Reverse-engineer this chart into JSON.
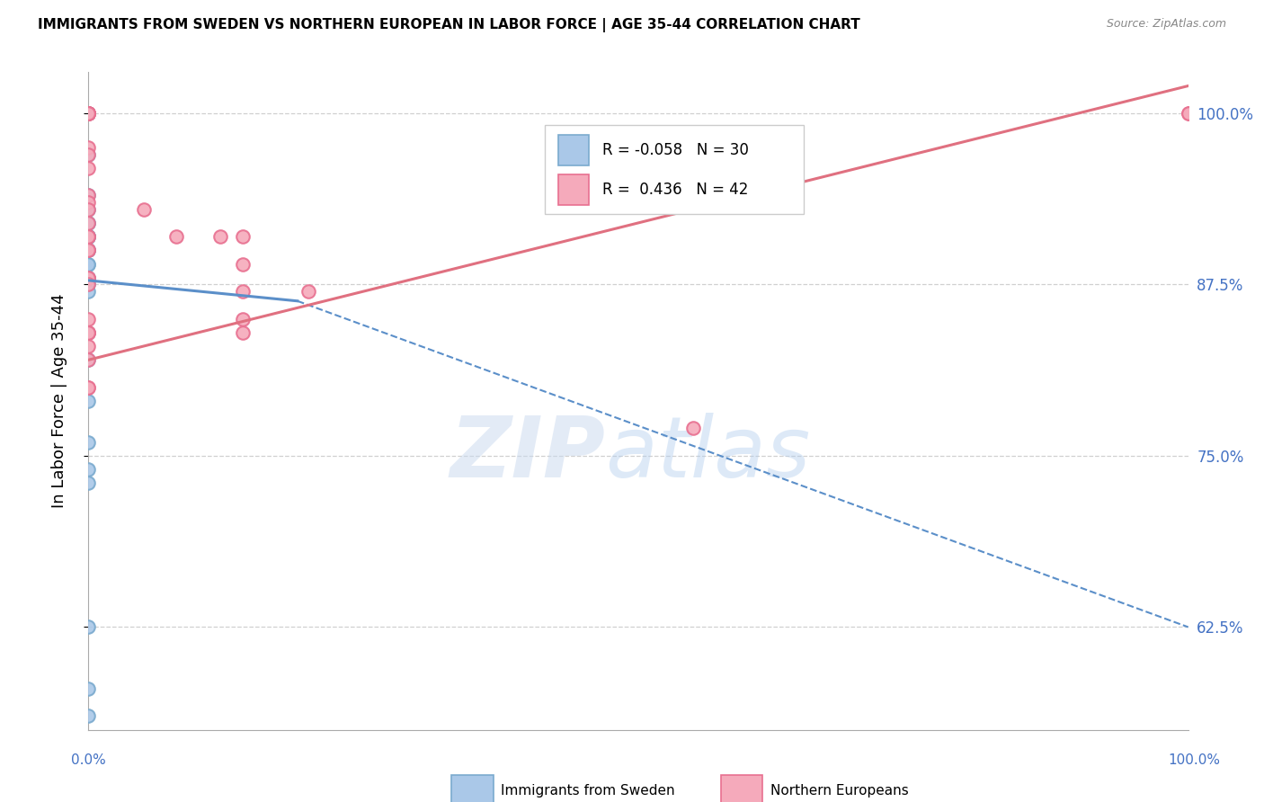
{
  "title": "IMMIGRANTS FROM SWEDEN VS NORTHERN EUROPEAN IN LABOR FORCE | AGE 35-44 CORRELATION CHART",
  "source": "Source: ZipAtlas.com",
  "ylabel": "In Labor Force | Age 35-44",
  "ytick_labels": [
    "100.0%",
    "87.5%",
    "75.0%",
    "62.5%"
  ],
  "ytick_values": [
    1.0,
    0.875,
    0.75,
    0.625
  ],
  "xlim": [
    0.0,
    1.0
  ],
  "ylim": [
    0.55,
    1.03
  ],
  "sweden_fill": "#aac8e8",
  "sweden_edge": "#7aaace",
  "northern_fill": "#f5aabb",
  "northern_edge": "#e87090",
  "trend_sweden_color": "#5b8fc9",
  "trend_northern_color": "#e07080",
  "right_axis_color": "#4472c4",
  "grid_color": "#d0d0d0",
  "R_sweden": -0.058,
  "N_sweden": 30,
  "R_northern": 0.436,
  "N_northern": 42,
  "marker_size": 110,
  "sweden_x": [
    0.0,
    0.0,
    0.0,
    0.0,
    0.0,
    0.0,
    0.0,
    0.0,
    0.0,
    0.0,
    0.0,
    0.0,
    0.0,
    0.0,
    0.0,
    0.0,
    0.0,
    0.0,
    0.0,
    0.0,
    0.0,
    0.0,
    0.0,
    0.0,
    0.0,
    0.0,
    0.0,
    0.0,
    0.0,
    0.0
  ],
  "sweden_y": [
    1.0,
    1.0,
    0.97,
    0.94,
    0.93,
    0.92,
    0.92,
    0.91,
    0.91,
    0.91,
    0.91,
    0.91,
    0.9,
    0.9,
    0.9,
    0.89,
    0.89,
    0.88,
    0.88,
    0.875,
    0.87,
    0.84,
    0.82,
    0.79,
    0.76,
    0.74,
    0.73,
    0.625,
    0.58,
    0.56
  ],
  "northern_x": [
    0.0,
    0.0,
    0.0,
    0.0,
    0.0,
    0.0,
    0.0,
    0.0,
    0.0,
    0.0,
    0.0,
    0.0,
    0.0,
    0.0,
    0.0,
    0.0,
    0.0,
    0.0,
    0.0,
    0.0,
    0.0,
    0.0,
    0.0,
    0.0,
    0.0,
    0.0,
    0.0,
    0.0,
    0.0,
    0.0,
    0.05,
    0.08,
    0.12,
    0.14,
    0.14,
    0.14,
    0.14,
    0.14,
    0.2,
    0.55,
    1.0,
    1.0
  ],
  "northern_y": [
    1.0,
    1.0,
    1.0,
    1.0,
    1.0,
    1.0,
    1.0,
    1.0,
    0.975,
    0.97,
    0.96,
    0.94,
    0.935,
    0.93,
    0.92,
    0.91,
    0.91,
    0.9,
    0.9,
    0.88,
    0.88,
    0.875,
    0.85,
    0.84,
    0.84,
    0.84,
    0.83,
    0.82,
    0.8,
    0.8,
    0.93,
    0.91,
    0.91,
    0.91,
    0.89,
    0.87,
    0.85,
    0.84,
    0.87,
    0.77,
    1.0,
    1.0
  ],
  "sweden_trend_x0": 0.0,
  "sweden_trend_y0": 0.878,
  "sweden_trend_x1": 0.19,
  "sweden_trend_y1": 0.863,
  "sweden_trend_dash_x0": 0.19,
  "sweden_trend_dash_y0": 0.863,
  "sweden_trend_dash_x1": 1.0,
  "sweden_trend_dash_y1": 0.625,
  "northern_trend_x0": 0.0,
  "northern_trend_y0": 0.82,
  "northern_trend_x1": 1.0,
  "northern_trend_y1": 1.02
}
